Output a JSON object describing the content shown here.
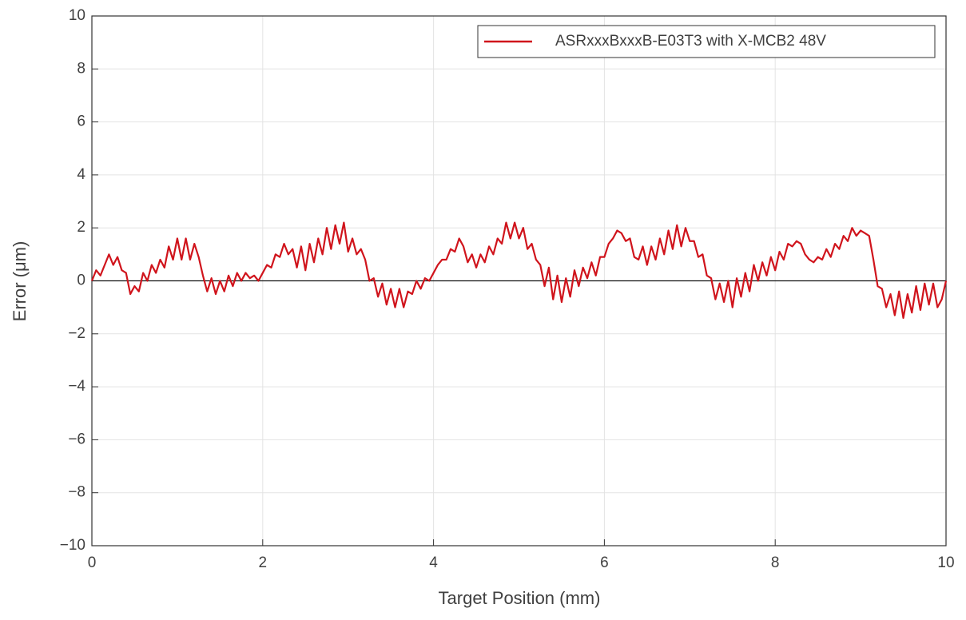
{
  "chart_data": {
    "type": "line",
    "xlabel": "Target Position (mm)",
    "ylabel": "Error (μm)",
    "x": [
      0,
      0.05,
      0.1,
      0.15,
      0.2,
      0.25,
      0.3,
      0.35,
      0.4,
      0.45,
      0.5,
      0.55,
      0.6,
      0.65,
      0.7,
      0.75,
      0.8,
      0.85,
      0.9,
      0.95,
      1,
      1.05,
      1.1,
      1.15,
      1.2,
      1.25,
      1.3,
      1.35,
      1.4,
      1.45,
      1.5,
      1.55,
      1.6,
      1.65,
      1.7,
      1.75,
      1.8,
      1.85,
      1.9,
      1.95,
      2,
      2.05,
      2.1,
      2.15,
      2.2,
      2.25,
      2.3,
      2.35,
      2.4,
      2.45,
      2.5,
      2.55,
      2.6,
      2.65,
      2.7,
      2.75,
      2.8,
      2.85,
      2.9,
      2.95,
      3,
      3.05,
      3.1,
      3.15,
      3.2,
      3.25,
      3.3,
      3.35,
      3.4,
      3.45,
      3.5,
      3.55,
      3.6,
      3.65,
      3.7,
      3.75,
      3.8,
      3.85,
      3.9,
      3.95,
      4,
      4.05,
      4.1,
      4.15,
      4.2,
      4.25,
      4.3,
      4.35,
      4.4,
      4.45,
      4.5,
      4.55,
      4.6,
      4.65,
      4.7,
      4.75,
      4.8,
      4.85,
      4.9,
      4.95,
      5,
      5.05,
      5.1,
      5.15,
      5.2,
      5.25,
      5.3,
      5.35,
      5.4,
      5.45,
      5.5,
      5.55,
      5.6,
      5.65,
      5.7,
      5.75,
      5.8,
      5.85,
      5.9,
      5.95,
      6,
      6.05,
      6.1,
      6.15,
      6.2,
      6.25,
      6.3,
      6.35,
      6.4,
      6.45,
      6.5,
      6.55,
      6.6,
      6.65,
      6.7,
      6.75,
      6.8,
      6.85,
      6.9,
      6.95,
      7,
      7.05,
      7.1,
      7.15,
      7.2,
      7.25,
      7.3,
      7.35,
      7.4,
      7.45,
      7.5,
      7.55,
      7.6,
      7.65,
      7.7,
      7.75,
      7.8,
      7.85,
      7.9,
      7.95,
      8,
      8.05,
      8.1,
      8.15,
      8.2,
      8.25,
      8.3,
      8.35,
      8.4,
      8.45,
      8.5,
      8.55,
      8.6,
      8.65,
      8.7,
      8.75,
      8.8,
      8.85,
      8.9,
      8.95,
      9,
      9.05,
      9.1,
      9.15,
      9.2,
      9.25,
      9.3,
      9.35,
      9.4,
      9.45,
      9.5,
      9.55,
      9.6,
      9.65,
      9.7,
      9.75,
      9.8,
      9.85,
      9.9,
      9.95,
      10
    ],
    "series": [
      {
        "name": "ASRxxxBxxxB-E03T3 with X-MCB2 48V",
        "color": "#d0141c",
        "values": [
          0.0,
          0.4,
          0.2,
          0.6,
          1.0,
          0.6,
          0.9,
          0.4,
          0.3,
          -0.5,
          -0.2,
          -0.4,
          0.3,
          0.0,
          0.6,
          0.3,
          0.8,
          0.5,
          1.3,
          0.8,
          1.6,
          0.8,
          1.6,
          0.8,
          1.4,
          0.9,
          0.2,
          -0.4,
          0.1,
          -0.5,
          0.0,
          -0.4,
          0.2,
          -0.2,
          0.3,
          0.0,
          0.3,
          0.1,
          0.2,
          0.0,
          0.3,
          0.6,
          0.5,
          1.0,
          0.9,
          1.4,
          1.0,
          1.2,
          0.5,
          1.3,
          0.4,
          1.4,
          0.7,
          1.6,
          1.0,
          2.0,
          1.2,
          2.1,
          1.4,
          2.2,
          1.1,
          1.6,
          1.0,
          1.2,
          0.8,
          0.0,
          0.1,
          -0.6,
          -0.1,
          -0.9,
          -0.3,
          -1.0,
          -0.3,
          -1.0,
          -0.4,
          -0.5,
          0.0,
          -0.3,
          0.1,
          0.0,
          0.3,
          0.6,
          0.8,
          0.8,
          1.2,
          1.1,
          1.6,
          1.3,
          0.7,
          1.0,
          0.5,
          1.0,
          0.7,
          1.3,
          1.0,
          1.6,
          1.4,
          2.2,
          1.6,
          2.2,
          1.6,
          2.0,
          1.2,
          1.4,
          0.8,
          0.6,
          -0.2,
          0.5,
          -0.7,
          0.2,
          -0.8,
          0.1,
          -0.6,
          0.4,
          -0.2,
          0.5,
          0.1,
          0.7,
          0.2,
          0.9,
          0.9,
          1.4,
          1.6,
          1.9,
          1.8,
          1.5,
          1.6,
          0.9,
          0.8,
          1.3,
          0.6,
          1.3,
          0.8,
          1.6,
          1.0,
          1.9,
          1.2,
          2.1,
          1.3,
          2.0,
          1.5,
          1.5,
          0.9,
          1.0,
          0.2,
          0.1,
          -0.7,
          -0.1,
          -0.8,
          0.0,
          -1.0,
          0.1,
          -0.6,
          0.3,
          -0.4,
          0.6,
          0.0,
          0.7,
          0.2,
          0.9,
          0.4,
          1.1,
          0.8,
          1.4,
          1.3,
          1.5,
          1.4,
          1.0,
          0.8,
          0.7,
          0.9,
          0.8,
          1.2,
          0.9,
          1.4,
          1.2,
          1.7,
          1.5,
          2.0,
          1.7,
          1.9,
          1.8,
          1.7,
          0.8,
          -0.2,
          -0.3,
          -1.0,
          -0.5,
          -1.3,
          -0.4,
          -1.4,
          -0.5,
          -1.2,
          -0.2,
          -1.1,
          -0.1,
          -0.9,
          -0.1,
          -1.0,
          -0.7,
          0.0
        ]
      }
    ],
    "xlim": [
      0,
      10
    ],
    "xticks": [
      0,
      2,
      4,
      6,
      8,
      10
    ],
    "ylim": [
      -10,
      10
    ],
    "yticks": [
      {
        "value": -10,
        "label": "−10"
      },
      {
        "value": -8,
        "label": "−8"
      },
      {
        "value": -6,
        "label": "−6"
      },
      {
        "value": -4,
        "label": "−4"
      },
      {
        "value": -2,
        "label": "−2"
      },
      0,
      2,
      4,
      6,
      8,
      10
    ],
    "grid": true,
    "legend": "upper right"
  }
}
